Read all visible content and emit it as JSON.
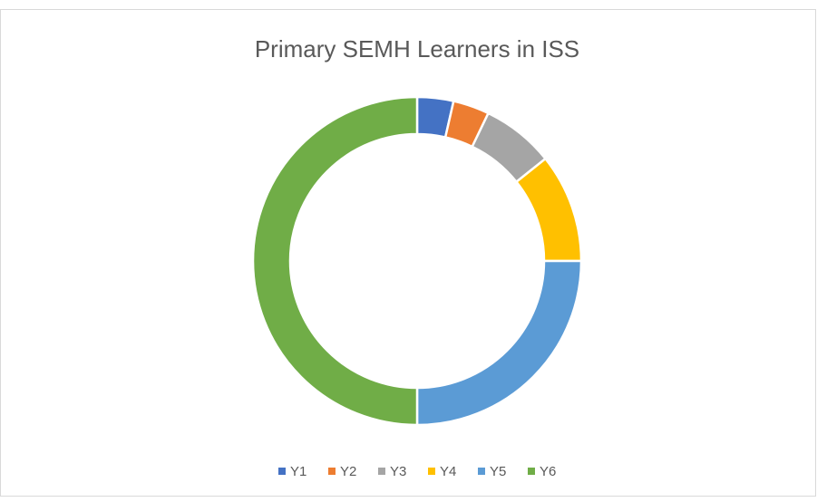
{
  "chart_data": {
    "type": "doughnut",
    "title": "Primary SEMH Learners in ISS",
    "categories": [
      "Y1",
      "Y2",
      "Y3",
      "Y4",
      "Y5",
      "Y6"
    ],
    "values": [
      1,
      1,
      2,
      3,
      7,
      14
    ],
    "colors": [
      "#4472c4",
      "#ed7d31",
      "#a5a5a5",
      "#ffc000",
      "#5b9bd5",
      "#70ad47"
    ],
    "legend": "bottom"
  }
}
